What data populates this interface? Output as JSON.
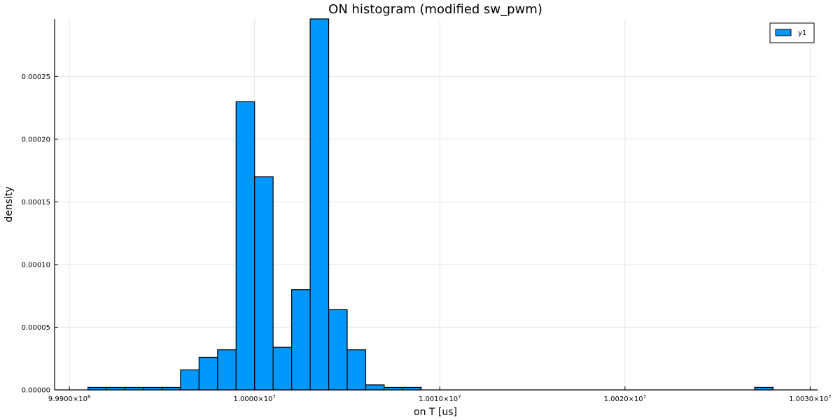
{
  "chart_data": {
    "type": "bar",
    "title": "ON histogram (modified sw_pwm)",
    "xlabel": "on T [us]",
    "ylabel": "density",
    "xlim": [
      9989200,
      10030400
    ],
    "ylim": [
      0,
      0.000296
    ],
    "x_ticks": [
      {
        "value": 9990000,
        "mantissa": "9.9900",
        "exp": "6"
      },
      {
        "value": 10000000,
        "mantissa": "1.0000",
        "exp": "7"
      },
      {
        "value": 10010000,
        "mantissa": "1.0010",
        "exp": "7"
      },
      {
        "value": 10020000,
        "mantissa": "1.0020",
        "exp": "7"
      },
      {
        "value": 10030000,
        "mantissa": "1.0030",
        "exp": "7"
      }
    ],
    "y_ticks": [
      {
        "value": 0,
        "label": "0.00000"
      },
      {
        "value": 5e-05,
        "label": "0.00005"
      },
      {
        "value": 0.0001,
        "label": "0.00010"
      },
      {
        "value": 0.00015,
        "label": "0.00015"
      },
      {
        "value": 0.0002,
        "label": "0.00020"
      },
      {
        "value": 0.00025,
        "label": "0.00025"
      }
    ],
    "bin_width": 1000,
    "series": [
      {
        "name": "y1",
        "color": "#0097fa",
        "bins": [
          {
            "x": 9991000,
            "value": 2e-06
          },
          {
            "x": 9992000,
            "value": 2e-06
          },
          {
            "x": 9993000,
            "value": 2e-06
          },
          {
            "x": 9994000,
            "value": 2e-06
          },
          {
            "x": 9995000,
            "value": 2e-06
          },
          {
            "x": 9996000,
            "value": 1.6e-05
          },
          {
            "x": 9997000,
            "value": 2.6e-05
          },
          {
            "x": 9998000,
            "value": 3.2e-05
          },
          {
            "x": 9999000,
            "value": 0.00023
          },
          {
            "x": 10000000,
            "value": 0.00017
          },
          {
            "x": 10001000,
            "value": 3.4e-05
          },
          {
            "x": 10002000,
            "value": 8e-05
          },
          {
            "x": 10003000,
            "value": 0.000296
          },
          {
            "x": 10004000,
            "value": 6.4e-05
          },
          {
            "x": 10005000,
            "value": 3.2e-05
          },
          {
            "x": 10006000,
            "value": 4e-06
          },
          {
            "x": 10007000,
            "value": 2e-06
          },
          {
            "x": 10008000,
            "value": 2e-06
          },
          {
            "x": 10027000,
            "value": 2e-06
          }
        ]
      }
    ],
    "grid": true,
    "legend_position": "top-right"
  }
}
